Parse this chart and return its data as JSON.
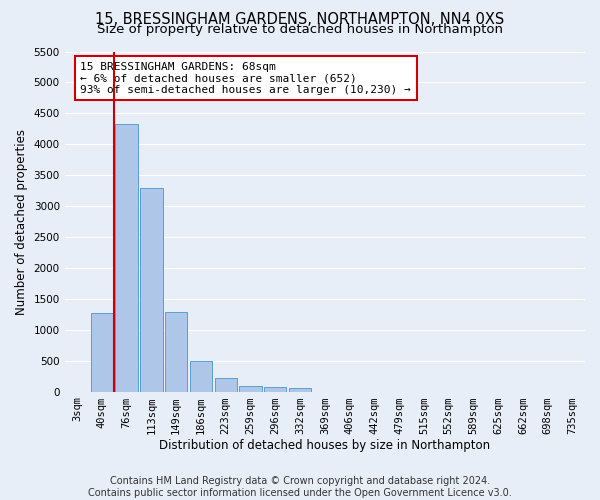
{
  "title": "15, BRESSINGHAM GARDENS, NORTHAMPTON, NN4 0XS",
  "subtitle": "Size of property relative to detached houses in Northampton",
  "xlabel": "Distribution of detached houses by size in Northampton",
  "ylabel": "Number of detached properties",
  "footer_line1": "Contains HM Land Registry data © Crown copyright and database right 2024.",
  "footer_line2": "Contains public sector information licensed under the Open Government Licence v3.0.",
  "categories": [
    "3sqm",
    "40sqm",
    "76sqm",
    "113sqm",
    "149sqm",
    "186sqm",
    "223sqm",
    "259sqm",
    "296sqm",
    "332sqm",
    "369sqm",
    "406sqm",
    "442sqm",
    "479sqm",
    "515sqm",
    "552sqm",
    "589sqm",
    "625sqm",
    "662sqm",
    "698sqm",
    "735sqm"
  ],
  "bar_values": [
    0,
    1270,
    4330,
    3300,
    1280,
    490,
    220,
    90,
    70,
    60,
    0,
    0,
    0,
    0,
    0,
    0,
    0,
    0,
    0,
    0,
    0
  ],
  "bar_color": "#aec6e8",
  "bar_edge_color": "#5a9fd4",
  "annotation_box_text": "15 BRESSINGHAM GARDENS: 68sqm\n← 6% of detached houses are smaller (652)\n93% of semi-detached houses are larger (10,230) →",
  "annotation_box_color": "#ffffff",
  "annotation_box_edge_color": "#cc0000",
  "vline_x_index": 1.5,
  "vline_color": "#cc0000",
  "ylim": [
    0,
    5500
  ],
  "yticks": [
    0,
    500,
    1000,
    1500,
    2000,
    2500,
    3000,
    3500,
    4000,
    4500,
    5000,
    5500
  ],
  "bg_color": "#e8eef8",
  "grid_color": "#ffffff",
  "title_fontsize": 10.5,
  "subtitle_fontsize": 9.5,
  "axis_label_fontsize": 8.5,
  "tick_fontsize": 7.5,
  "annotation_fontsize": 8,
  "footer_fontsize": 7
}
